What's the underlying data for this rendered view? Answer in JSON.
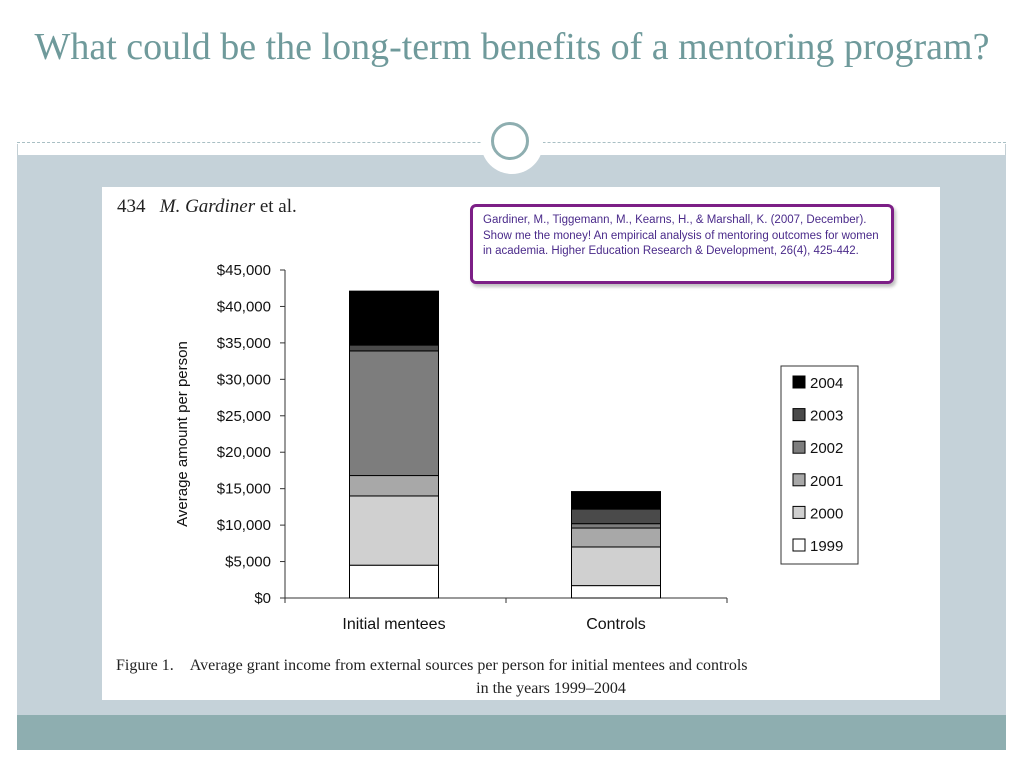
{
  "slide": {
    "title": "What could be the long-term benefits of a mentoring program?"
  },
  "figure": {
    "page_number": "434",
    "author": "M. Gardiner",
    "author_suffix": " et al.",
    "citation": "Gardiner, M., Tiggemann, M., Kearns, H., & Marshall, K. (2007, December). Show me the money! An empirical analysis of mentoring outcomes for women in academia. Higher Education Research & Development, 26(4), 425-442.",
    "caption_label": "Figure 1.",
    "caption_line1": "Average grant income from external sources per person for initial mentees and controls",
    "caption_line2": "in the years 1999–2004"
  },
  "colors": {
    "title": "#6f9a9b",
    "content_band": "#c5d2d9",
    "footer_band": "#8eaeb0",
    "citation_border": "#7c1f86"
  },
  "chart_data": {
    "type": "bar",
    "stacked": true,
    "categories": [
      "Initial mentees",
      "Controls"
    ],
    "ylabel": "Average amount per person",
    "xlabel": "",
    "ylim": [
      0,
      45000
    ],
    "yticks": [
      0,
      5000,
      10000,
      15000,
      20000,
      25000,
      30000,
      35000,
      40000,
      45000
    ],
    "ytick_labels": [
      "$0",
      "$5,000",
      "$10,000",
      "$15,000",
      "$20,000",
      "$25,000",
      "$30,000",
      "$35,000",
      "$40,000",
      "$45,000"
    ],
    "legend_position": "right",
    "series": [
      {
        "name": "1999",
        "color": "#ffffff",
        "values": [
          4500,
          1700
        ]
      },
      {
        "name": "2000",
        "color": "#d0d0d0",
        "values": [
          9500,
          5300
        ]
      },
      {
        "name": "2001",
        "color": "#a8a8a8",
        "values": [
          2800,
          2600
        ]
      },
      {
        "name": "2002",
        "color": "#7d7d7d",
        "values": [
          17100,
          600
        ]
      },
      {
        "name": "2003",
        "color": "#4a4a4a",
        "values": [
          800,
          2000
        ]
      },
      {
        "name": "2004",
        "color": "#000000",
        "values": [
          7400,
          2400
        ]
      }
    ]
  }
}
